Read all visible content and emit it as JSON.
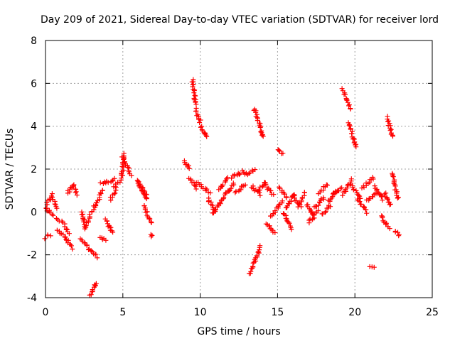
{
  "chart_data": {
    "type": "scatter",
    "title": "Day 209 of 2021, Sidereal Day-to-day VTEC variation (SDTVAR) for receiver lord",
    "xlabel": "GPS time / hours",
    "ylabel": "SDTVAR / TECUs",
    "xlim": [
      0,
      25
    ],
    "ylim": [
      -4,
      8
    ],
    "xticks": [
      0,
      5,
      10,
      15,
      20,
      25
    ],
    "yticks": [
      -4,
      -2,
      0,
      2,
      4,
      6,
      8
    ],
    "grid": true,
    "marker": "plus",
    "series_color": "#ff0000",
    "segments": [
      {
        "x": [
          0.0,
          0.3
        ],
        "y": [
          -1.2,
          -1.1
        ]
      },
      {
        "x": [
          0.0,
          0.45
        ],
        "y": [
          0.2,
          -0.2
        ]
      },
      {
        "x": [
          0.05,
          0.45
        ],
        "y": [
          0.4,
          0.8
        ]
      },
      {
        "x": [
          0.45,
          0.75
        ],
        "y": [
          0.6,
          0.2
        ]
      },
      {
        "x": [
          0.75,
          1.1
        ],
        "y": [
          -0.3,
          -0.5
        ]
      },
      {
        "x": [
          0.8,
          1.3
        ],
        "y": [
          -0.9,
          -1.2
        ]
      },
      {
        "x": [
          1.2,
          1.5
        ],
        "y": [
          -0.6,
          -1.0
        ]
      },
      {
        "x": [
          1.3,
          1.7
        ],
        "y": [
          -1.2,
          -1.7
        ]
      },
      {
        "x": [
          1.4,
          1.8
        ],
        "y": [
          0.9,
          1.2
        ]
      },
      {
        "x": [
          1.8,
          2.0
        ],
        "y": [
          1.3,
          0.8
        ]
      },
      {
        "x": [
          2.3,
          2.6
        ],
        "y": [
          0.0,
          -0.7
        ]
      },
      {
        "x": [
          2.3,
          3.3
        ],
        "y": [
          -1.3,
          -2.1
        ]
      },
      {
        "x": [
          2.5,
          2.9
        ],
        "y": [
          -0.8,
          -0.2
        ]
      },
      {
        "x": [
          2.9,
          3.3
        ],
        "y": [
          -0.1,
          0.4
        ]
      },
      {
        "x": [
          2.9,
          3.3
        ],
        "y": [
          -3.9,
          -3.3
        ]
      },
      {
        "x": [
          3.3,
          3.7
        ],
        "y": [
          0.4,
          1.0
        ]
      },
      {
        "x": [
          3.5,
          3.9
        ],
        "y": [
          -1.2,
          -1.3
        ]
      },
      {
        "x": [
          3.6,
          4.5
        ],
        "y": [
          1.3,
          1.5
        ]
      },
      {
        "x": [
          3.9,
          4.3
        ],
        "y": [
          -0.3,
          -1.0
        ]
      },
      {
        "x": [
          4.2,
          4.6
        ],
        "y": [
          0.6,
          1.1
        ]
      },
      {
        "x": [
          4.4,
          4.8
        ],
        "y": [
          1.2,
          1.4
        ]
      },
      {
        "x": [
          4.9,
          5.1
        ],
        "y": [
          1.5,
          2.7
        ]
      },
      {
        "x": [
          5.0,
          5.5
        ],
        "y": [
          2.6,
          1.7
        ]
      },
      {
        "x": [
          5.9,
          6.5
        ],
        "y": [
          1.5,
          0.8
        ]
      },
      {
        "x": [
          6.0,
          6.6
        ],
        "y": [
          1.3,
          0.6
        ]
      },
      {
        "x": [
          6.4,
          6.8
        ],
        "y": [
          0.3,
          -0.5
        ]
      },
      {
        "x": [
          6.8,
          6.9
        ],
        "y": [
          -1.1,
          -1.1
        ]
      },
      {
        "x": [
          9.0,
          9.3
        ],
        "y": [
          2.4,
          2.0
        ]
      },
      {
        "x": [
          9.3,
          9.8
        ],
        "y": [
          1.6,
          1.1
        ]
      },
      {
        "x": [
          9.5,
          9.7
        ],
        "y": [
          6.2,
          5.0
        ]
      },
      {
        "x": [
          9.7,
          10.0
        ],
        "y": [
          4.8,
          4.2
        ]
      },
      {
        "x": [
          10.0,
          10.4
        ],
        "y": [
          4.0,
          3.5
        ]
      },
      {
        "x": [
          9.8,
          10.6
        ],
        "y": [
          1.4,
          0.9
        ]
      },
      {
        "x": [
          10.5,
          11.0
        ],
        "y": [
          0.6,
          0.0
        ]
      },
      {
        "x": [
          10.8,
          11.5
        ],
        "y": [
          -0.1,
          0.6
        ]
      },
      {
        "x": [
          11.2,
          11.8
        ],
        "y": [
          1.0,
          1.6
        ]
      },
      {
        "x": [
          11.5,
          12.2
        ],
        "y": [
          0.7,
          1.3
        ]
      },
      {
        "x": [
          12.0,
          12.8
        ],
        "y": [
          1.6,
          1.9
        ]
      },
      {
        "x": [
          12.3,
          12.9
        ],
        "y": [
          0.9,
          1.3
        ]
      },
      {
        "x": [
          12.9,
          13.5
        ],
        "y": [
          1.7,
          2.0
        ]
      },
      {
        "x": [
          13.2,
          13.9
        ],
        "y": [
          -2.9,
          -1.6
        ]
      },
      {
        "x": [
          13.3,
          13.9
        ],
        "y": [
          1.2,
          0.8
        ]
      },
      {
        "x": [
          13.5,
          14.1
        ],
        "y": [
          4.8,
          3.5
        ]
      },
      {
        "x": [
          13.8,
          14.2
        ],
        "y": [
          1.0,
          1.4
        ]
      },
      {
        "x": [
          14.2,
          14.7
        ],
        "y": [
          1.3,
          0.8
        ]
      },
      {
        "x": [
          14.3,
          14.8
        ],
        "y": [
          -0.5,
          -1.0
        ]
      },
      {
        "x": [
          14.6,
          15.3
        ],
        "y": [
          -0.2,
          0.5
        ]
      },
      {
        "x": [
          15.0,
          15.3
        ],
        "y": [
          2.9,
          2.7
        ]
      },
      {
        "x": [
          15.1,
          15.6
        ],
        "y": [
          1.1,
          0.7
        ]
      },
      {
        "x": [
          15.4,
          15.9
        ],
        "y": [
          -0.1,
          -0.8
        ]
      },
      {
        "x": [
          15.5,
          16.1
        ],
        "y": [
          0.2,
          0.8
        ]
      },
      {
        "x": [
          15.9,
          16.5
        ],
        "y": [
          0.8,
          0.3
        ]
      },
      {
        "x": [
          16.3,
          16.8
        ],
        "y": [
          0.3,
          0.9
        ]
      },
      {
        "x": [
          16.9,
          17.3
        ],
        "y": [
          0.4,
          -0.2
        ]
      },
      {
        "x": [
          17.0,
          17.6
        ],
        "y": [
          -0.5,
          0.0
        ]
      },
      {
        "x": [
          17.4,
          18.0
        ],
        "y": [
          0.2,
          0.7
        ]
      },
      {
        "x": [
          17.7,
          18.2
        ],
        "y": [
          0.9,
          1.3
        ]
      },
      {
        "x": [
          17.9,
          18.4
        ],
        "y": [
          -0.1,
          0.3
        ]
      },
      {
        "x": [
          18.3,
          18.8
        ],
        "y": [
          0.5,
          1.0
        ]
      },
      {
        "x": [
          18.6,
          19.1
        ],
        "y": [
          0.9,
          1.1
        ]
      },
      {
        "x": [
          19.2,
          19.7
        ],
        "y": [
          5.7,
          4.8
        ]
      },
      {
        "x": [
          19.6,
          20.1
        ],
        "y": [
          4.2,
          3.0
        ]
      },
      {
        "x": [
          19.2,
          19.8
        ],
        "y": [
          0.8,
          1.5
        ]
      },
      {
        "x": [
          19.8,
          20.4
        ],
        "y": [
          1.2,
          0.6
        ]
      },
      {
        "x": [
          20.2,
          20.8
        ],
        "y": [
          0.6,
          0.0
        ]
      },
      {
        "x": [
          20.5,
          21.2
        ],
        "y": [
          1.1,
          1.6
        ]
      },
      {
        "x": [
          20.8,
          21.4
        ],
        "y": [
          0.5,
          0.9
        ]
      },
      {
        "x": [
          21.0,
          21.2
        ],
        "y": [
          -2.6,
          -2.6
        ]
      },
      {
        "x": [
          21.3,
          21.8
        ],
        "y": [
          1.2,
          0.6
        ]
      },
      {
        "x": [
          21.7,
          22.2
        ],
        "y": [
          -0.2,
          -0.8
        ]
      },
      {
        "x": [
          21.9,
          22.3
        ],
        "y": [
          0.9,
          0.3
        ]
      },
      {
        "x": [
          22.1,
          22.4
        ],
        "y": [
          4.4,
          3.5
        ]
      },
      {
        "x": [
          22.4,
          22.8
        ],
        "y": [
          1.8,
          0.6
        ]
      },
      {
        "x": [
          22.6,
          22.9
        ],
        "y": [
          -0.9,
          -1.1
        ]
      }
    ]
  }
}
